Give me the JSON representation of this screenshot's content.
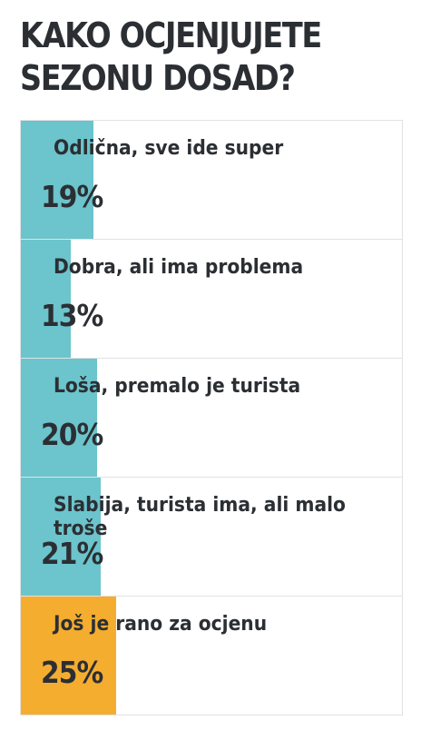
{
  "poll": {
    "title": "KAKO OCJENJUJETE SEZONU DOSAD?",
    "options": [
      {
        "label": "Odlična, sve ide super",
        "percent_label": "19%",
        "percent": 19
      },
      {
        "label": "Dobra, ali ima problema",
        "percent_label": "13%",
        "percent": 13
      },
      {
        "label": "Loša, premalo je turista",
        "percent_label": "20%",
        "percent": 20
      },
      {
        "label": "Slabija, turista ima, ali malo troše",
        "percent_label": "21%",
        "percent": 21
      },
      {
        "label": "Još je rano za ocjenu",
        "percent_label": "25%",
        "percent": 25
      }
    ]
  },
  "colors": {
    "bar": "#6cc4cc",
    "leading_bar": "#f5ad2f",
    "text": "#2b2f33",
    "border": "#e2e2e2"
  }
}
